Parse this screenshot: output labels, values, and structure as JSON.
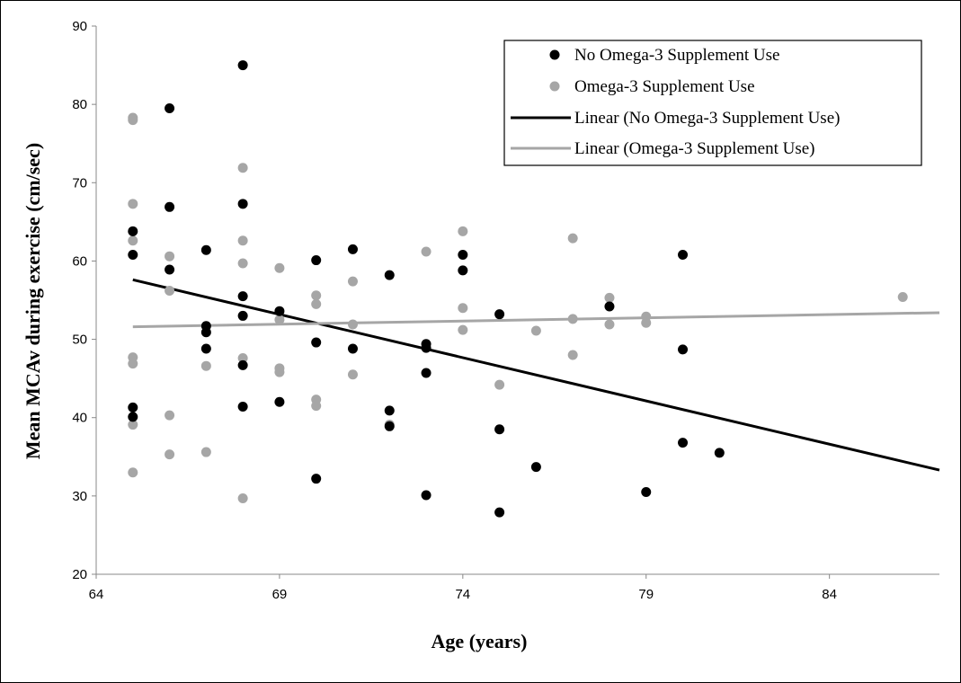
{
  "chart_data": {
    "type": "scatter",
    "xlabel": "Age (years)",
    "ylabel": "Mean MCAv during exercise (cm/sec)",
    "xlim": [
      64,
      87
    ],
    "ylim": [
      20,
      90
    ],
    "xticks": [
      64,
      69,
      74,
      79,
      84
    ],
    "yticks": [
      20,
      30,
      40,
      50,
      60,
      70,
      80,
      90
    ],
    "grid": false,
    "legend_position": "top-right",
    "series": [
      {
        "name": "No Omega-3 Supplement Use",
        "color": "#000000",
        "points": [
          [
            65,
            63.8
          ],
          [
            65,
            60.8
          ],
          [
            65,
            41.3
          ],
          [
            65,
            40.1
          ],
          [
            66,
            79.5
          ],
          [
            66,
            66.9
          ],
          [
            66,
            58.9
          ],
          [
            67,
            61.4
          ],
          [
            67,
            51.7
          ],
          [
            67,
            50.9
          ],
          [
            67,
            48.8
          ],
          [
            68,
            85.0
          ],
          [
            68,
            67.3
          ],
          [
            68,
            55.5
          ],
          [
            68,
            53.0
          ],
          [
            68,
            46.7
          ],
          [
            68,
            41.4
          ],
          [
            69,
            53.6
          ],
          [
            69,
            42.0
          ],
          [
            70,
            60.1
          ],
          [
            70,
            49.6
          ],
          [
            70,
            32.2
          ],
          [
            71,
            61.5
          ],
          [
            71,
            48.8
          ],
          [
            72,
            58.2
          ],
          [
            72,
            40.9
          ],
          [
            72,
            38.9
          ],
          [
            73,
            49.4
          ],
          [
            73,
            48.9
          ],
          [
            73,
            45.7
          ],
          [
            73,
            30.1
          ],
          [
            74,
            60.8
          ],
          [
            74,
            58.8
          ],
          [
            75,
            53.2
          ],
          [
            75,
            38.5
          ],
          [
            75,
            27.9
          ],
          [
            76,
            33.7
          ],
          [
            78,
            54.2
          ],
          [
            79,
            30.5
          ],
          [
            80,
            60.8
          ],
          [
            80,
            48.7
          ],
          [
            80,
            36.8
          ],
          [
            81,
            35.5
          ]
        ]
      },
      {
        "name": "Omega-3 Supplement Use",
        "color": "#a6a6a6",
        "points": [
          [
            65,
            78.3
          ],
          [
            65,
            78.0
          ],
          [
            65,
            67.3
          ],
          [
            65,
            62.6
          ],
          [
            65,
            47.7
          ],
          [
            65,
            46.9
          ],
          [
            65,
            39.1
          ],
          [
            65,
            33.0
          ],
          [
            66,
            60.6
          ],
          [
            66,
            56.2
          ],
          [
            66,
            40.3
          ],
          [
            66,
            35.3
          ],
          [
            67,
            46.6
          ],
          [
            67,
            35.6
          ],
          [
            68,
            71.9
          ],
          [
            68,
            62.6
          ],
          [
            68,
            59.7
          ],
          [
            68,
            47.6
          ],
          [
            68,
            29.7
          ],
          [
            69,
            59.1
          ],
          [
            69,
            52.5
          ],
          [
            69,
            46.3
          ],
          [
            69,
            45.8
          ],
          [
            70,
            55.6
          ],
          [
            70,
            54.5
          ],
          [
            70,
            42.3
          ],
          [
            70,
            41.5
          ],
          [
            71,
            57.4
          ],
          [
            71,
            51.9
          ],
          [
            71,
            45.5
          ],
          [
            72,
            39.1
          ],
          [
            73,
            61.2
          ],
          [
            74,
            63.8
          ],
          [
            74,
            54.0
          ],
          [
            74,
            51.2
          ],
          [
            75,
            44.2
          ],
          [
            76,
            51.1
          ],
          [
            77,
            62.9
          ],
          [
            77,
            52.6
          ],
          [
            77,
            48.0
          ],
          [
            78,
            55.3
          ],
          [
            78,
            51.9
          ],
          [
            79,
            52.9
          ],
          [
            79,
            52.1
          ],
          [
            86,
            55.4
          ]
        ]
      }
    ],
    "trendlines": [
      {
        "name": "Linear (No Omega-3 Supplement Use)",
        "color": "#000000",
        "from": [
          65,
          57.6
        ],
        "to": [
          87,
          33.3
        ]
      },
      {
        "name": "Linear (Omega-3 Supplement Use)",
        "color": "#a6a6a6",
        "from": [
          65,
          51.6
        ],
        "to": [
          87,
          53.4
        ]
      }
    ]
  }
}
